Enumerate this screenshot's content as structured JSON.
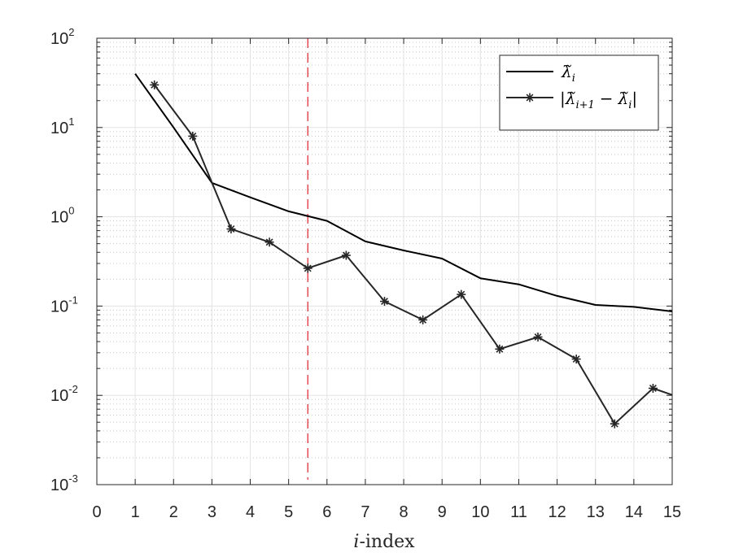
{
  "chart_data": {
    "type": "line",
    "xlabel": "i-index",
    "xlabel_parts": {
      "italic": "i",
      "rest": "-index"
    },
    "yscale": "log",
    "xlim": [
      0,
      15
    ],
    "ylim": [
      0.001,
      100
    ],
    "xticks": [
      0,
      1,
      2,
      3,
      4,
      5,
      6,
      7,
      8,
      9,
      10,
      11,
      12,
      13,
      14,
      15
    ],
    "yticks": [
      {
        "base": "10",
        "exp": "-3",
        "value": 0.001
      },
      {
        "base": "10",
        "exp": "-2",
        "value": 0.01
      },
      {
        "base": "10",
        "exp": "-1",
        "value": 0.1
      },
      {
        "base": "10",
        "exp": "0",
        "value": 1
      },
      {
        "base": "10",
        "exp": "1",
        "value": 10
      },
      {
        "base": "10",
        "exp": "2",
        "value": 100
      }
    ],
    "grid": true,
    "minor_grid": true,
    "legend_position": "top-right",
    "series": [
      {
        "name": "λ̃_i",
        "legend_tex": {
          "base": "λ̃",
          "sub": "i"
        },
        "color": "#000000",
        "marker": "none",
        "x": [
          1,
          2,
          3,
          4,
          5,
          6,
          7,
          8,
          9,
          10,
          11,
          12,
          13,
          14,
          15
        ],
        "y": [
          40,
          10,
          2.4,
          1.65,
          1.15,
          0.9,
          0.53,
          0.42,
          0.34,
          0.205,
          0.175,
          0.13,
          0.103,
          0.098,
          0.087
        ]
      },
      {
        "name": "|λ̃_{i+1} − λ̃_i|",
        "legend_tex": {
          "a_base": "λ̃",
          "a_sub": "i+1",
          "op": "−",
          "b_base": "λ̃",
          "b_sub": "i"
        },
        "color": "#262626",
        "marker": "asterisk",
        "x": [
          1.5,
          2.5,
          3.5,
          4.5,
          5.5,
          6.5,
          7.5,
          8.5,
          9.5,
          10.5,
          11.5,
          12.5,
          13.5,
          14.5,
          15
        ],
        "y": [
          30,
          8,
          0.73,
          0.52,
          0.265,
          0.37,
          0.113,
          0.07,
          0.135,
          0.033,
          0.045,
          0.0255,
          0.0048,
          0.012,
          0.0101
        ]
      }
    ],
    "reference_line": {
      "x": 5.5,
      "color": "#e0303a",
      "style": "dashed"
    }
  }
}
